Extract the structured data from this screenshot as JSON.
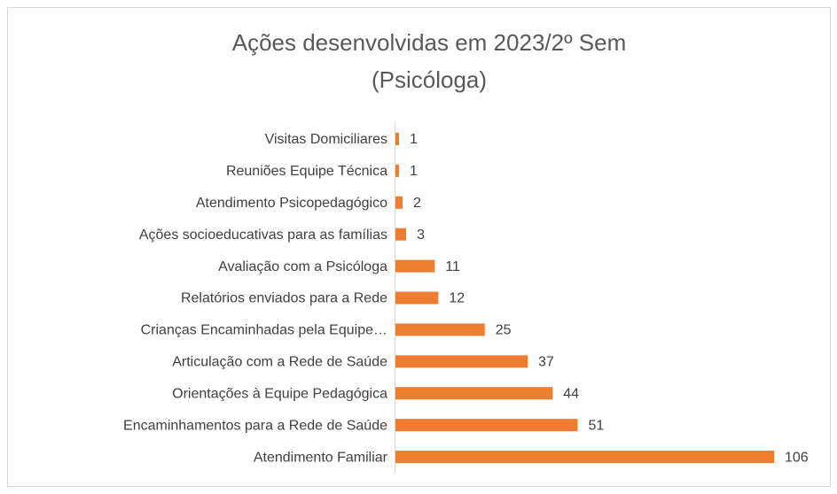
{
  "chart_data": {
    "type": "bar",
    "orientation": "horizontal",
    "title": "Ações desenvolvidas em 2023/2º Sem",
    "subtitle": "(Psicóloga)",
    "categories": [
      "Visitas Domiciliares",
      "Reuniões Equipe Técnica",
      "Atendimento Psicopedagógico",
      "Ações socioeducativas para as famílias",
      "Avaliação com a Psicóloga",
      "Relatórios enviados para a Rede",
      "Crianças Encaminhadas pela Equipe…",
      "Articulação com a Rede de Saúde ",
      "Orientações à Equipe Pedagógica",
      "Encaminhamentos para a Rede de Saúde",
      "Atendimento Familiar"
    ],
    "values": [
      1,
      1,
      2,
      3,
      11,
      12,
      25,
      37,
      44,
      51,
      106
    ],
    "color": "#ed7d31"
  }
}
